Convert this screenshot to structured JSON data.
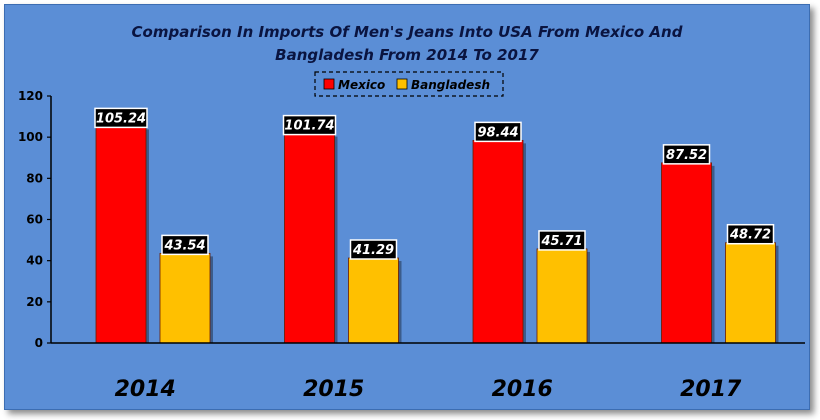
{
  "chart_data": {
    "type": "bar",
    "title_lines": [
      "Comparison In Imports Of Men's Jeans Into USA From Mexico And",
      "Bangladesh From 2014 To 2017"
    ],
    "categories": [
      "2014",
      "2015",
      "2016",
      "2017"
    ],
    "series": [
      {
        "name": "Mexico",
        "color": "#ff0000",
        "values": [
          105.24,
          101.74,
          98.44,
          87.52
        ]
      },
      {
        "name": "Bangladesh",
        "color": "#ffc000",
        "values": [
          43.54,
          41.29,
          45.71,
          48.72
        ]
      }
    ],
    "data_labels": [
      [
        "105.24",
        "101.74",
        "98.44",
        "87.52"
      ],
      [
        "43.54",
        "41.29",
        "45.71",
        "48.72"
      ]
    ],
    "yticks": [
      "0",
      "20",
      "40",
      "60",
      "80",
      "100",
      "120"
    ],
    "ylim": [
      0,
      120
    ],
    "grid": false,
    "legend_position": "top-center",
    "background_color": "#5b8ed6"
  }
}
